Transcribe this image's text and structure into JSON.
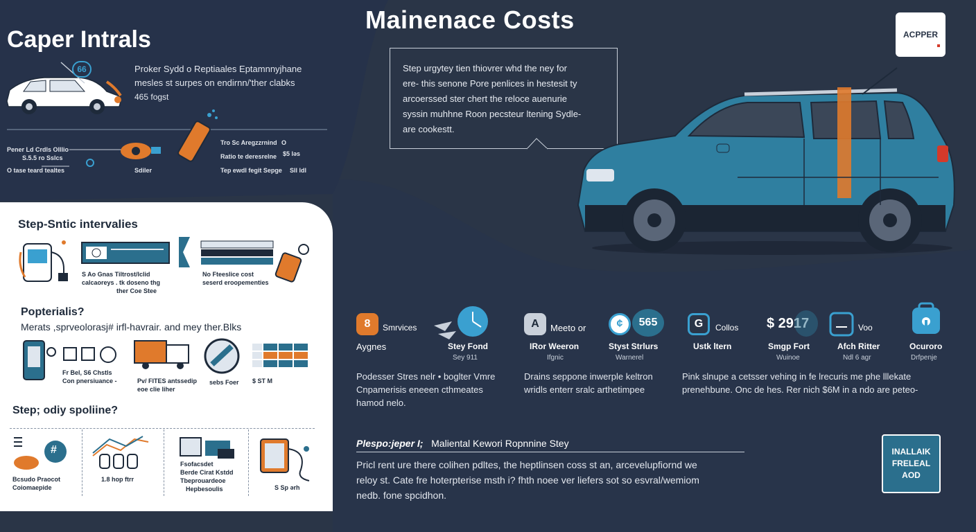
{
  "header": {
    "title": "Mainenace Costs",
    "logo_text": "ACPPER"
  },
  "intro": {
    "title": "Caper Intrals",
    "paragraph": "Proker Sydd o Reptiaales Eptamnnyjhane",
    "paragraph2": "mesles st surpes on endirnn/'ther clabks",
    "sub": "465 fogst",
    "badge": "66"
  },
  "diagram_labels": {
    "left1": "Pener Ld Crdls Olllio",
    "left2": "S.5.5 ro Sslcs",
    "left3": "O tase teard tealtes",
    "middle": "Sdiler",
    "right1": "Tro Sc Aregzzrnind",
    "right2": "Ratio te deresrelne",
    "right3": "Tep ewdl fegit Sepge",
    "right_val1": "O",
    "right_val2": "$5 ləs",
    "right_val3": "Sll ldl"
  },
  "panel": {
    "heading1": "Step-Sntic intervalies",
    "row1_label1": "S Ao Gnas Tiltrost/lclid",
    "row1_label2": "calcaoreys . tk doseno thg",
    "row1_label3": "ther Coe Stee",
    "row1_label4": "No Fteeslice cost",
    "row1_label5": "seserd eroopementies",
    "heading2": "Popterialis?",
    "subheading2": "Merats ,sprveolorasj# irfl-havrair. and mey ther.Blks",
    "row2_label1": "Fr Bel, S6 Chstls",
    "row2_label2": "Con pnersiuance -",
    "row2_label3": "Pv/ FITES antssedip",
    "row2_label4": "eoe clie liher",
    "row2_label5": "sebs Foer",
    "row2_label6": "$ ST M",
    "heading3": "Step; odiy spoliine?",
    "row3_label1": "Bcsudo Praocot",
    "row3_label2": "Coiomaepide",
    "row3_label3": "1.8 hop ftrr",
    "row3_label4": "Fsofacsdet",
    "row3_label5": "Berde Cirat Kstdd",
    "row3_label6": "Tbeprouardeoe",
    "row3_label7": "Hepbesoulis",
    "row3_label8": "S Sp ərh",
    "badge3": "#"
  },
  "speech": {
    "line1": "Step urgytey tien thiovrer whd  the ney for",
    "line2": "ere- this senone Pore penlices in hestesit ty",
    "line3": "arcoerssed ster chert the reloce auenurie",
    "line4": "syssin muhhne Roon pecsteur ltening Sydle-",
    "line5": "are cookestt."
  },
  "stats": [
    {
      "badge": "8",
      "color": "#e07a2c",
      "label": "Smrvices",
      "label2": "Aygnes"
    },
    {
      "label": "Stey Fond",
      "sub": "Sey 911"
    },
    {
      "badge": "A",
      "color": "#c9d0da",
      "label": "Meeto or",
      "label2": "IRor Weeron",
      "sub": "Ifgnic"
    },
    {
      "badge": "¢",
      "color": "#3aa0d0",
      "value": "565",
      "label": "Styst Strlurs",
      "sub": "Warnerel"
    },
    {
      "badge": "G",
      "color": "#3aa0d0",
      "label": "Collos",
      "label2": "Ustk ltern"
    },
    {
      "value": "$ 2917",
      "label": "Smgp Fort",
      "sub": "Wuinoe"
    },
    {
      "label": "Voo",
      "label2": "Afch Ritter",
      "sub": "Ndl 6 agr"
    },
    {
      "label": "Ocuroro",
      "sub": "Drfpenje"
    }
  ],
  "descriptions": {
    "d1a": "Podesser Stres nelr • boglter Vmre",
    "d1b": "Cnpamerisis eneeen cthmeates",
    "d1c": "hamod nelo.",
    "d2a": "Drains seppone inwerple keltron",
    "d2b": "wridls enterr sralc arthetimpee",
    "d3a": "Pink slnupe a cetsser vehing in  fe lrecuris me phe lllekate",
    "d3b": "prenehbune. Onc de hes. Rer nich $6M in a ndo  are peteo-"
  },
  "bottom": {
    "heading_ital": "Plespo:jeper I;",
    "heading_rest": "Maliental Kewori Ropnnine Stey",
    "line1": "Pricl rent ure there colihen pdltes, the heptlinsen coss st an, arcevelupfiornd we",
    "line2": "reloy st. Cate fre hoterpterise msth i? fhth noee ver liefers sot so esvral/wemiom",
    "line3": "nedb. fone spcidhon."
  },
  "cta": {
    "line1": "INALLAIK",
    "line2": "FRELEAL",
    "line3": "AOD"
  }
}
